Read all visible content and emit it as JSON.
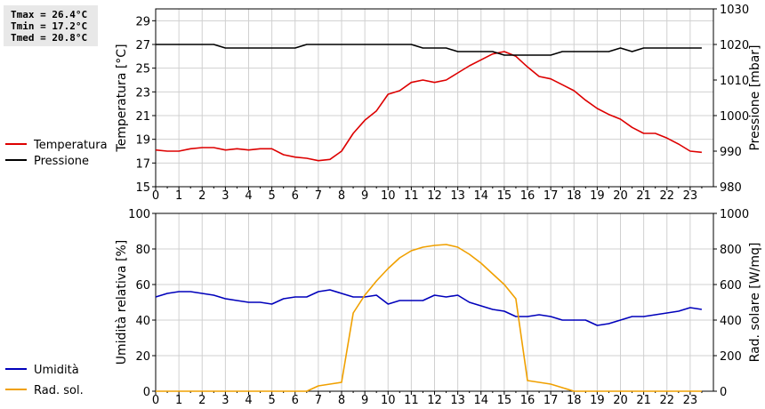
{
  "stats": {
    "tmax": "Tmax = 26.4°C",
    "tmin": "Tmin = 17.2°C",
    "tmed": "Tmed = 20.8°C"
  },
  "chart_data": [
    {
      "type": "line",
      "x_ticks": [
        "0",
        "1",
        "2",
        "3",
        "4",
        "5",
        "6",
        "7",
        "8",
        "9",
        "10",
        "11",
        "12",
        "13",
        "14",
        "15",
        "16",
        "17",
        "18",
        "19",
        "20",
        "21",
        "22",
        "23"
      ],
      "xlim": [
        0,
        24
      ],
      "grid": true,
      "legend_placement": "left",
      "left_axis": {
        "label": "Temperatura [°C]",
        "lim": [
          15,
          30
        ],
        "ticks": [
          "15",
          "17",
          "19",
          "21",
          "23",
          "25",
          "27",
          "29"
        ],
        "tick_values": [
          15,
          17,
          19,
          21,
          23,
          25,
          27,
          29
        ]
      },
      "right_axis": {
        "label": "Pressione [mbar]",
        "lim": [
          980,
          1030
        ],
        "ticks": [
          "980",
          "990",
          "1000",
          "1010",
          "1020",
          "1030"
        ],
        "tick_values": [
          980,
          990,
          1000,
          1010,
          1020,
          1030
        ]
      },
      "series": [
        {
          "name": "Temperatura",
          "axis": "left",
          "color": "#dd0000",
          "x": [
            0,
            0.5,
            1,
            1.5,
            2,
            2.5,
            3,
            3.5,
            4,
            4.5,
            5,
            5.5,
            6,
            6.5,
            7,
            7.5,
            8,
            8.5,
            9,
            9.5,
            10,
            10.5,
            11,
            11.5,
            12,
            12.5,
            13,
            13.5,
            14,
            14.5,
            15,
            15.5,
            16,
            16.5,
            17,
            17.5,
            18,
            18.5,
            19,
            19.5,
            20,
            20.5,
            21,
            21.5,
            22,
            22.5,
            23,
            23.5
          ],
          "values": [
            18.1,
            18.0,
            18.0,
            18.2,
            18.3,
            18.3,
            18.1,
            18.2,
            18.1,
            18.2,
            18.2,
            17.7,
            17.5,
            17.4,
            17.2,
            17.3,
            18.0,
            19.5,
            20.6,
            21.4,
            22.8,
            23.1,
            23.8,
            24.0,
            23.8,
            24.0,
            24.6,
            25.2,
            25.7,
            26.2,
            26.4,
            26.0,
            25.1,
            24.3,
            24.1,
            23.6,
            23.1,
            22.3,
            21.6,
            21.1,
            20.7,
            20.0,
            19.5,
            19.5,
            19.1,
            18.6,
            18.0,
            17.9
          ]
        },
        {
          "name": "Pressione",
          "axis": "right",
          "color": "#000000",
          "x": [
            0,
            0.5,
            1,
            1.5,
            2,
            2.5,
            3,
            3.5,
            4,
            4.5,
            5,
            5.5,
            6,
            6.5,
            7,
            7.5,
            8,
            8.5,
            9,
            9.5,
            10,
            10.5,
            11,
            11.5,
            12,
            12.5,
            13,
            13.5,
            14,
            14.5,
            15,
            15.5,
            16,
            16.5,
            17,
            17.5,
            18,
            18.5,
            19,
            19.5,
            20,
            20.5,
            21,
            21.5,
            22,
            22.5,
            23,
            23.5
          ],
          "values": [
            1020,
            1020,
            1020,
            1020,
            1020,
            1020,
            1019,
            1019,
            1019,
            1019,
            1019,
            1019,
            1019,
            1020,
            1020,
            1020,
            1020,
            1020,
            1020,
            1020,
            1020,
            1020,
            1020,
            1019,
            1019,
            1019,
            1018,
            1018,
            1018,
            1018,
            1017,
            1017,
            1017,
            1017,
            1017,
            1018,
            1018,
            1018,
            1018,
            1018,
            1019,
            1018,
            1019,
            1019,
            1019,
            1019,
            1019,
            1019
          ]
        }
      ]
    },
    {
      "type": "line",
      "x_ticks": [
        "0",
        "1",
        "2",
        "3",
        "4",
        "5",
        "6",
        "7",
        "8",
        "9",
        "10",
        "11",
        "12",
        "13",
        "14",
        "15",
        "16",
        "17",
        "18",
        "19",
        "20",
        "21",
        "22",
        "23"
      ],
      "xlim": [
        0,
        24
      ],
      "grid": true,
      "legend_placement": "left",
      "left_axis": {
        "label": "Umidità relativa [%]",
        "lim": [
          0,
          100
        ],
        "ticks": [
          "0",
          "20",
          "40",
          "60",
          "80",
          "100"
        ],
        "tick_values": [
          0,
          20,
          40,
          60,
          80,
          100
        ]
      },
      "right_axis": {
        "label": "Rad. solare [W/mq]",
        "lim": [
          0,
          1000
        ],
        "ticks": [
          "0",
          "200",
          "400",
          "600",
          "800",
          "1000"
        ],
        "tick_values": [
          0,
          200,
          400,
          600,
          800,
          1000
        ]
      },
      "series": [
        {
          "name": "Umidità",
          "axis": "left",
          "color": "#0000bb",
          "x": [
            0,
            0.5,
            1,
            1.5,
            2,
            2.5,
            3,
            3.5,
            4,
            4.5,
            5,
            5.5,
            6,
            6.5,
            7,
            7.5,
            8,
            8.5,
            9,
            9.5,
            10,
            10.5,
            11,
            11.5,
            12,
            12.5,
            13,
            13.5,
            14,
            14.5,
            15,
            15.5,
            16,
            16.5,
            17,
            17.5,
            18,
            18.5,
            19,
            19.5,
            20,
            20.5,
            21,
            21.5,
            22,
            22.5,
            23,
            23.5
          ],
          "values": [
            53,
            55,
            56,
            56,
            55,
            54,
            52,
            51,
            50,
            50,
            49,
            52,
            53,
            53,
            56,
            57,
            55,
            53,
            53,
            54,
            49,
            51,
            51,
            51,
            54,
            53,
            54,
            50,
            48,
            46,
            45,
            42,
            42,
            43,
            42,
            40,
            40,
            40,
            37,
            38,
            40,
            42,
            42,
            43,
            44,
            45,
            47,
            46
          ]
        },
        {
          "name": "Rad. sol.",
          "axis": "right",
          "color": "#f0a000",
          "x": [
            0,
            1,
            2,
            3,
            4,
            5,
            6,
            6.5,
            7,
            7.5,
            8,
            8.5,
            9,
            9.5,
            10,
            10.5,
            11,
            11.5,
            12,
            12.5,
            13,
            13.5,
            14,
            14.5,
            15,
            15.5,
            16,
            16.5,
            17,
            17.5,
            18,
            19,
            20,
            21,
            22,
            23,
            23.5
          ],
          "values": [
            0,
            0,
            0,
            0,
            0,
            0,
            0,
            0,
            30,
            40,
            50,
            440,
            540,
            620,
            690,
            750,
            790,
            810,
            820,
            825,
            810,
            770,
            720,
            660,
            600,
            520,
            60,
            50,
            40,
            20,
            0,
            0,
            0,
            0,
            0,
            0,
            0
          ]
        }
      ]
    }
  ]
}
